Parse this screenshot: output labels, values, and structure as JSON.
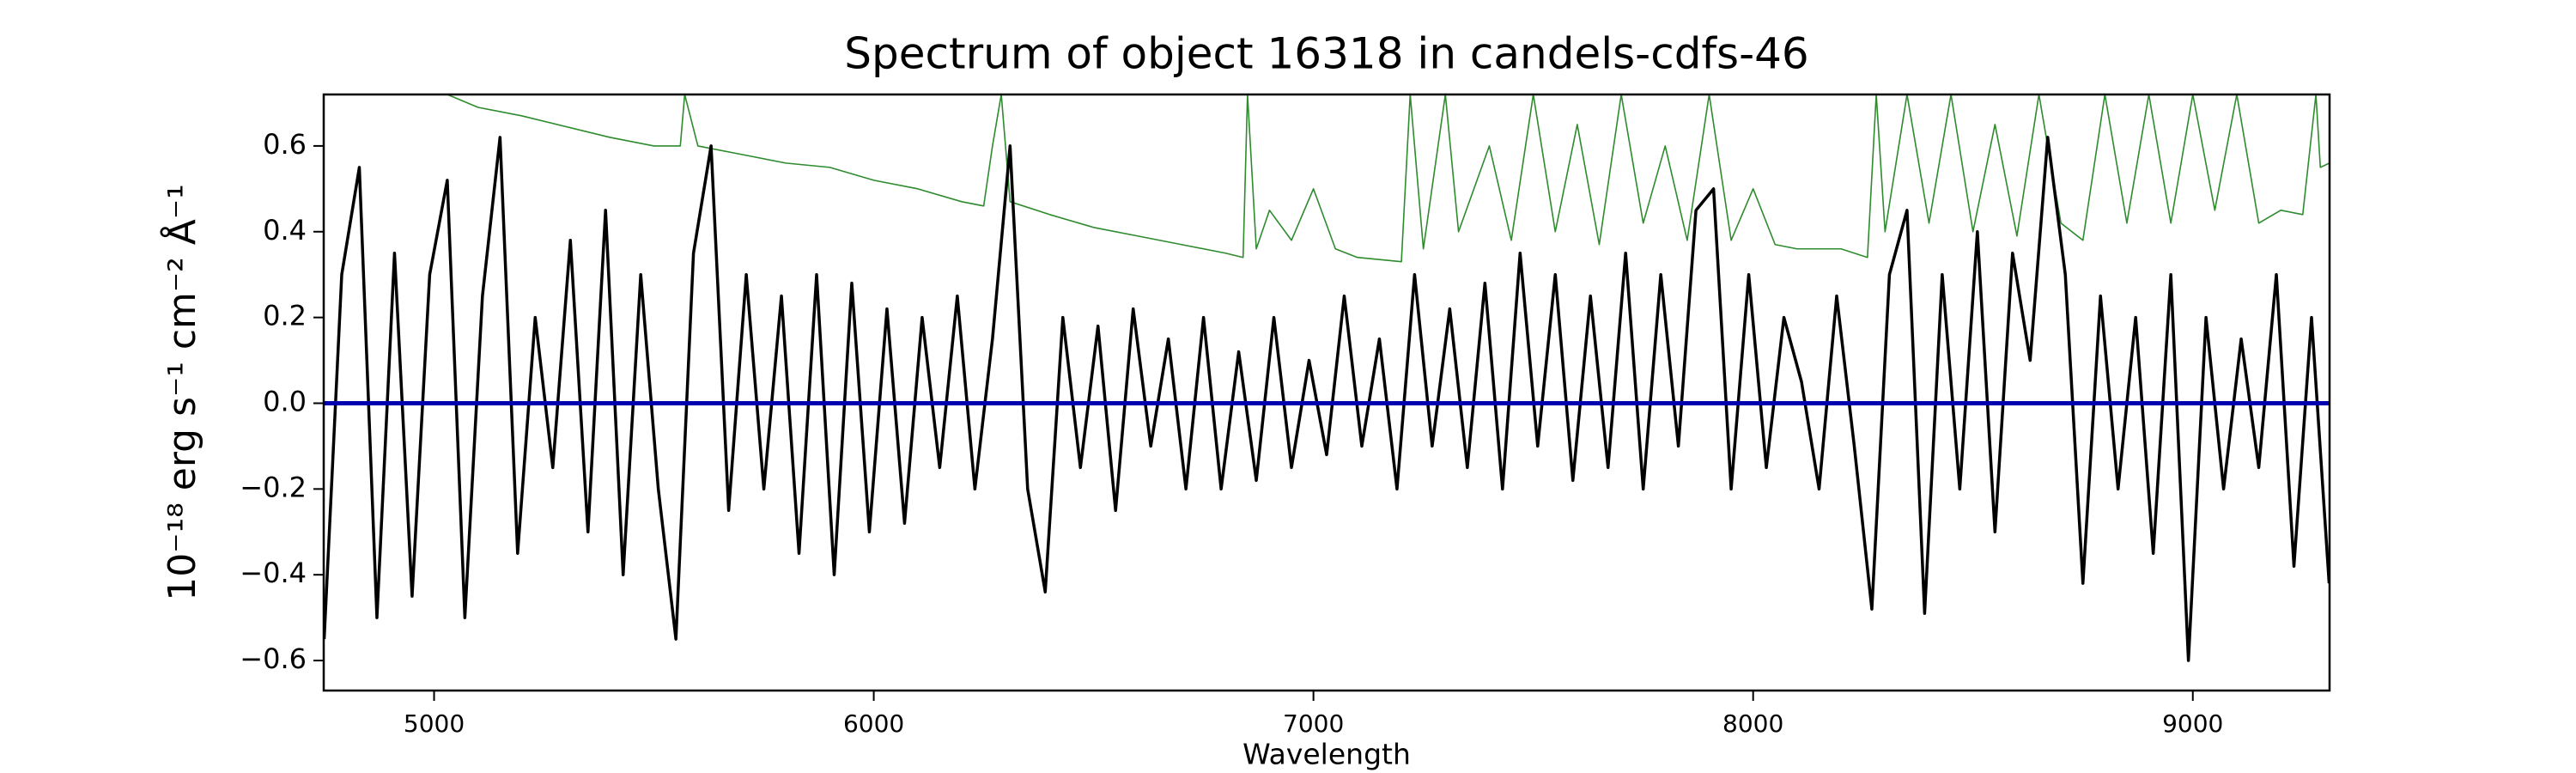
{
  "chart_data": {
    "type": "line",
    "title": "Spectrum of object 16318 in candels-cdfs-46",
    "xlabel": "Wavelength",
    "ylabel": "10⁻¹⁸ erg s⁻¹ cm⁻² Å⁻¹",
    "xlim": [
      4749,
      9311
    ],
    "ylim": [
      -0.67,
      0.72
    ],
    "xticks": [
      5000,
      6000,
      7000,
      8000,
      9000
    ],
    "yticks": [
      {
        "value": -0.6,
        "label": "−0.6"
      },
      {
        "value": -0.4,
        "label": "−0.4"
      },
      {
        "value": -0.2,
        "label": "−0.2"
      },
      {
        "value": 0,
        "label": "0.0"
      },
      0.2,
      0.4,
      0.6
    ],
    "series": [
      {
        "color": "#2e8b2e",
        "width": 1.6,
        "x": [
          5030,
          5100,
          5200,
          5400,
          5500,
          5560,
          5570,
          5600,
          5700,
          5800,
          5900,
          6000,
          6100,
          6200,
          6250,
          6270,
          6290,
          6310,
          6400,
          6500,
          6600,
          6700,
          6800,
          6840,
          6850,
          6870,
          6900,
          6950,
          7000,
          7050,
          7100,
          7200,
          7220,
          7250,
          7300,
          7330,
          7400,
          7450,
          7500,
          7550,
          7600,
          7650,
          7700,
          7750,
          7800,
          7850,
          7900,
          7950,
          8000,
          8050,
          8100,
          8200,
          8260,
          8280,
          8300,
          8350,
          8400,
          8450,
          8500,
          8550,
          8600,
          8650,
          8700,
          8750,
          8800,
          8850,
          8900,
          8950,
          9000,
          9050,
          9100,
          9150,
          9200,
          9250,
          9280,
          9290,
          9311
        ],
        "values": [
          0.72,
          0.69,
          0.67,
          0.62,
          0.6,
          0.6,
          0.72,
          0.6,
          0.58,
          0.56,
          0.55,
          0.52,
          0.5,
          0.47,
          0.46,
          0.6,
          0.72,
          0.47,
          0.44,
          0.41,
          0.39,
          0.37,
          0.35,
          0.34,
          0.72,
          0.36,
          0.45,
          0.38,
          0.5,
          0.36,
          0.34,
          0.33,
          0.72,
          0.36,
          0.72,
          0.4,
          0.6,
          0.38,
          0.72,
          0.4,
          0.65,
          0.37,
          0.72,
          0.42,
          0.6,
          0.38,
          0.72,
          0.38,
          0.5,
          0.37,
          0.36,
          0.36,
          0.34,
          0.72,
          0.4,
          0.72,
          0.42,
          0.72,
          0.4,
          0.65,
          0.39,
          0.72,
          0.42,
          0.38,
          0.72,
          0.42,
          0.72,
          0.42,
          0.72,
          0.45,
          0.72,
          0.42,
          0.45,
          0.44,
          0.72,
          0.55,
          0.56
        ]
      },
      {
        "color": "#000000",
        "width": 3.5,
        "x": [
          4750,
          4790,
          4830,
          4870,
          4910,
          4950,
          4990,
          5030,
          5070,
          5110,
          5150,
          5190,
          5230,
          5270,
          5310,
          5350,
          5390,
          5430,
          5470,
          5510,
          5550,
          5590,
          5630,
          5670,
          5710,
          5750,
          5790,
          5830,
          5870,
          5910,
          5950,
          5990,
          6030,
          6070,
          6110,
          6150,
          6190,
          6230,
          6270,
          6310,
          6350,
          6390,
          6430,
          6470,
          6510,
          6550,
          6590,
          6630,
          6670,
          6710,
          6750,
          6790,
          6830,
          6870,
          6910,
          6950,
          6990,
          7030,
          7070,
          7110,
          7150,
          7190,
          7230,
          7270,
          7310,
          7350,
          7390,
          7430,
          7470,
          7510,
          7550,
          7590,
          7630,
          7670,
          7710,
          7750,
          7790,
          7830,
          7870,
          7910,
          7950,
          7990,
          8030,
          8070,
          8110,
          8150,
          8190,
          8230,
          8270,
          8310,
          8350,
          8390,
          8430,
          8470,
          8510,
          8550,
          8590,
          8630,
          8670,
          8710,
          8750,
          8790,
          8830,
          8870,
          8910,
          8950,
          8990,
          9030,
          9070,
          9110,
          9150,
          9190,
          9230,
          9270,
          9310
        ],
        "values": [
          -0.55,
          0.3,
          0.55,
          -0.5,
          0.35,
          -0.45,
          0.3,
          0.52,
          -0.5,
          0.25,
          0.62,
          -0.35,
          0.2,
          -0.15,
          0.38,
          -0.3,
          0.45,
          -0.4,
          0.3,
          -0.2,
          -0.55,
          0.35,
          0.6,
          -0.25,
          0.3,
          -0.2,
          0.25,
          -0.35,
          0.3,
          -0.4,
          0.28,
          -0.3,
          0.22,
          -0.28,
          0.2,
          -0.15,
          0.25,
          -0.2,
          0.15,
          0.6,
          -0.2,
          -0.44,
          0.2,
          -0.15,
          0.18,
          -0.25,
          0.22,
          -0.1,
          0.15,
          -0.2,
          0.2,
          -0.2,
          0.12,
          -0.18,
          0.2,
          -0.15,
          0.1,
          -0.12,
          0.25,
          -0.1,
          0.15,
          -0.2,
          0.3,
          -0.1,
          0.22,
          -0.15,
          0.28,
          -0.2,
          0.35,
          -0.1,
          0.3,
          -0.18,
          0.25,
          -0.15,
          0.35,
          -0.2,
          0.3,
          -0.1,
          0.45,
          0.5,
          -0.2,
          0.3,
          -0.15,
          0.2,
          0.05,
          -0.2,
          0.25,
          -0.1,
          -0.48,
          0.3,
          0.45,
          -0.49,
          0.3,
          -0.2,
          0.4,
          -0.3,
          0.35,
          0.1,
          0.62,
          0.3,
          -0.42,
          0.25,
          -0.2,
          0.2,
          -0.35,
          0.3,
          -0.6,
          0.2,
          -0.2,
          0.15,
          -0.15,
          0.3,
          -0.38,
          0.2,
          -0.42
        ]
      },
      {
        "color": "#0000b0",
        "width": 5,
        "x": [
          4749,
          9311
        ],
        "values": [
          0,
          0
        ]
      }
    ]
  }
}
